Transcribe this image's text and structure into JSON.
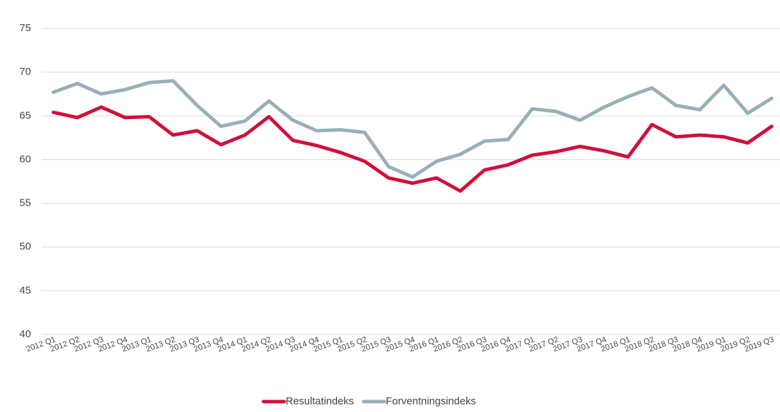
{
  "chart_data": {
    "type": "line",
    "categories": [
      "2012 Q1",
      "2012 Q2",
      "2012 Q3",
      "2012 Q4",
      "2013 Q1",
      "2013 Q2",
      "2013 Q3",
      "2013 Q4",
      "2014 Q1",
      "2014 Q2",
      "2014 Q3",
      "2014 Q4",
      "2015 Q1",
      "2015 Q2",
      "2015 Q3",
      "2015 Q4",
      "2016 Q1",
      "2016 Q2",
      "2016 Q3",
      "2016 Q4",
      "2017 Q1",
      "2017 Q2",
      "2017 Q3",
      "2017 Q4",
      "2018 Q1",
      "2018 Q2",
      "2018 Q3",
      "2018 Q4",
      "2019 Q1",
      "2019 Q2",
      "2019 Q3"
    ],
    "series": [
      {
        "name": "Resultatindeks",
        "color": "#d0103a",
        "values": [
          65.4,
          64.8,
          66.0,
          64.8,
          64.9,
          62.8,
          63.3,
          61.7,
          62.8,
          64.9,
          62.2,
          61.6,
          60.8,
          59.8,
          57.9,
          57.3,
          57.9,
          56.4,
          58.8,
          59.4,
          60.5,
          60.9,
          61.5,
          61.0,
          60.3,
          64.0,
          62.6,
          62.8,
          62.6,
          61.9,
          63.8
        ]
      },
      {
        "name": "Forventningsindeks",
        "color": "#98afb7",
        "values": [
          67.7,
          68.7,
          67.5,
          68.0,
          68.8,
          69.0,
          66.2,
          63.8,
          64.4,
          66.7,
          64.5,
          63.3,
          63.4,
          63.1,
          59.2,
          58.0,
          59.8,
          60.6,
          62.1,
          62.3,
          65.8,
          65.5,
          64.5,
          66.0,
          67.2,
          68.2,
          66.2,
          65.7,
          68.5,
          65.3,
          67.0
        ]
      }
    ],
    "ylim": [
      40,
      75
    ],
    "yticks": [
      40,
      45,
      50,
      55,
      60,
      65,
      70,
      75
    ],
    "grid": true,
    "legend": "bottom"
  }
}
